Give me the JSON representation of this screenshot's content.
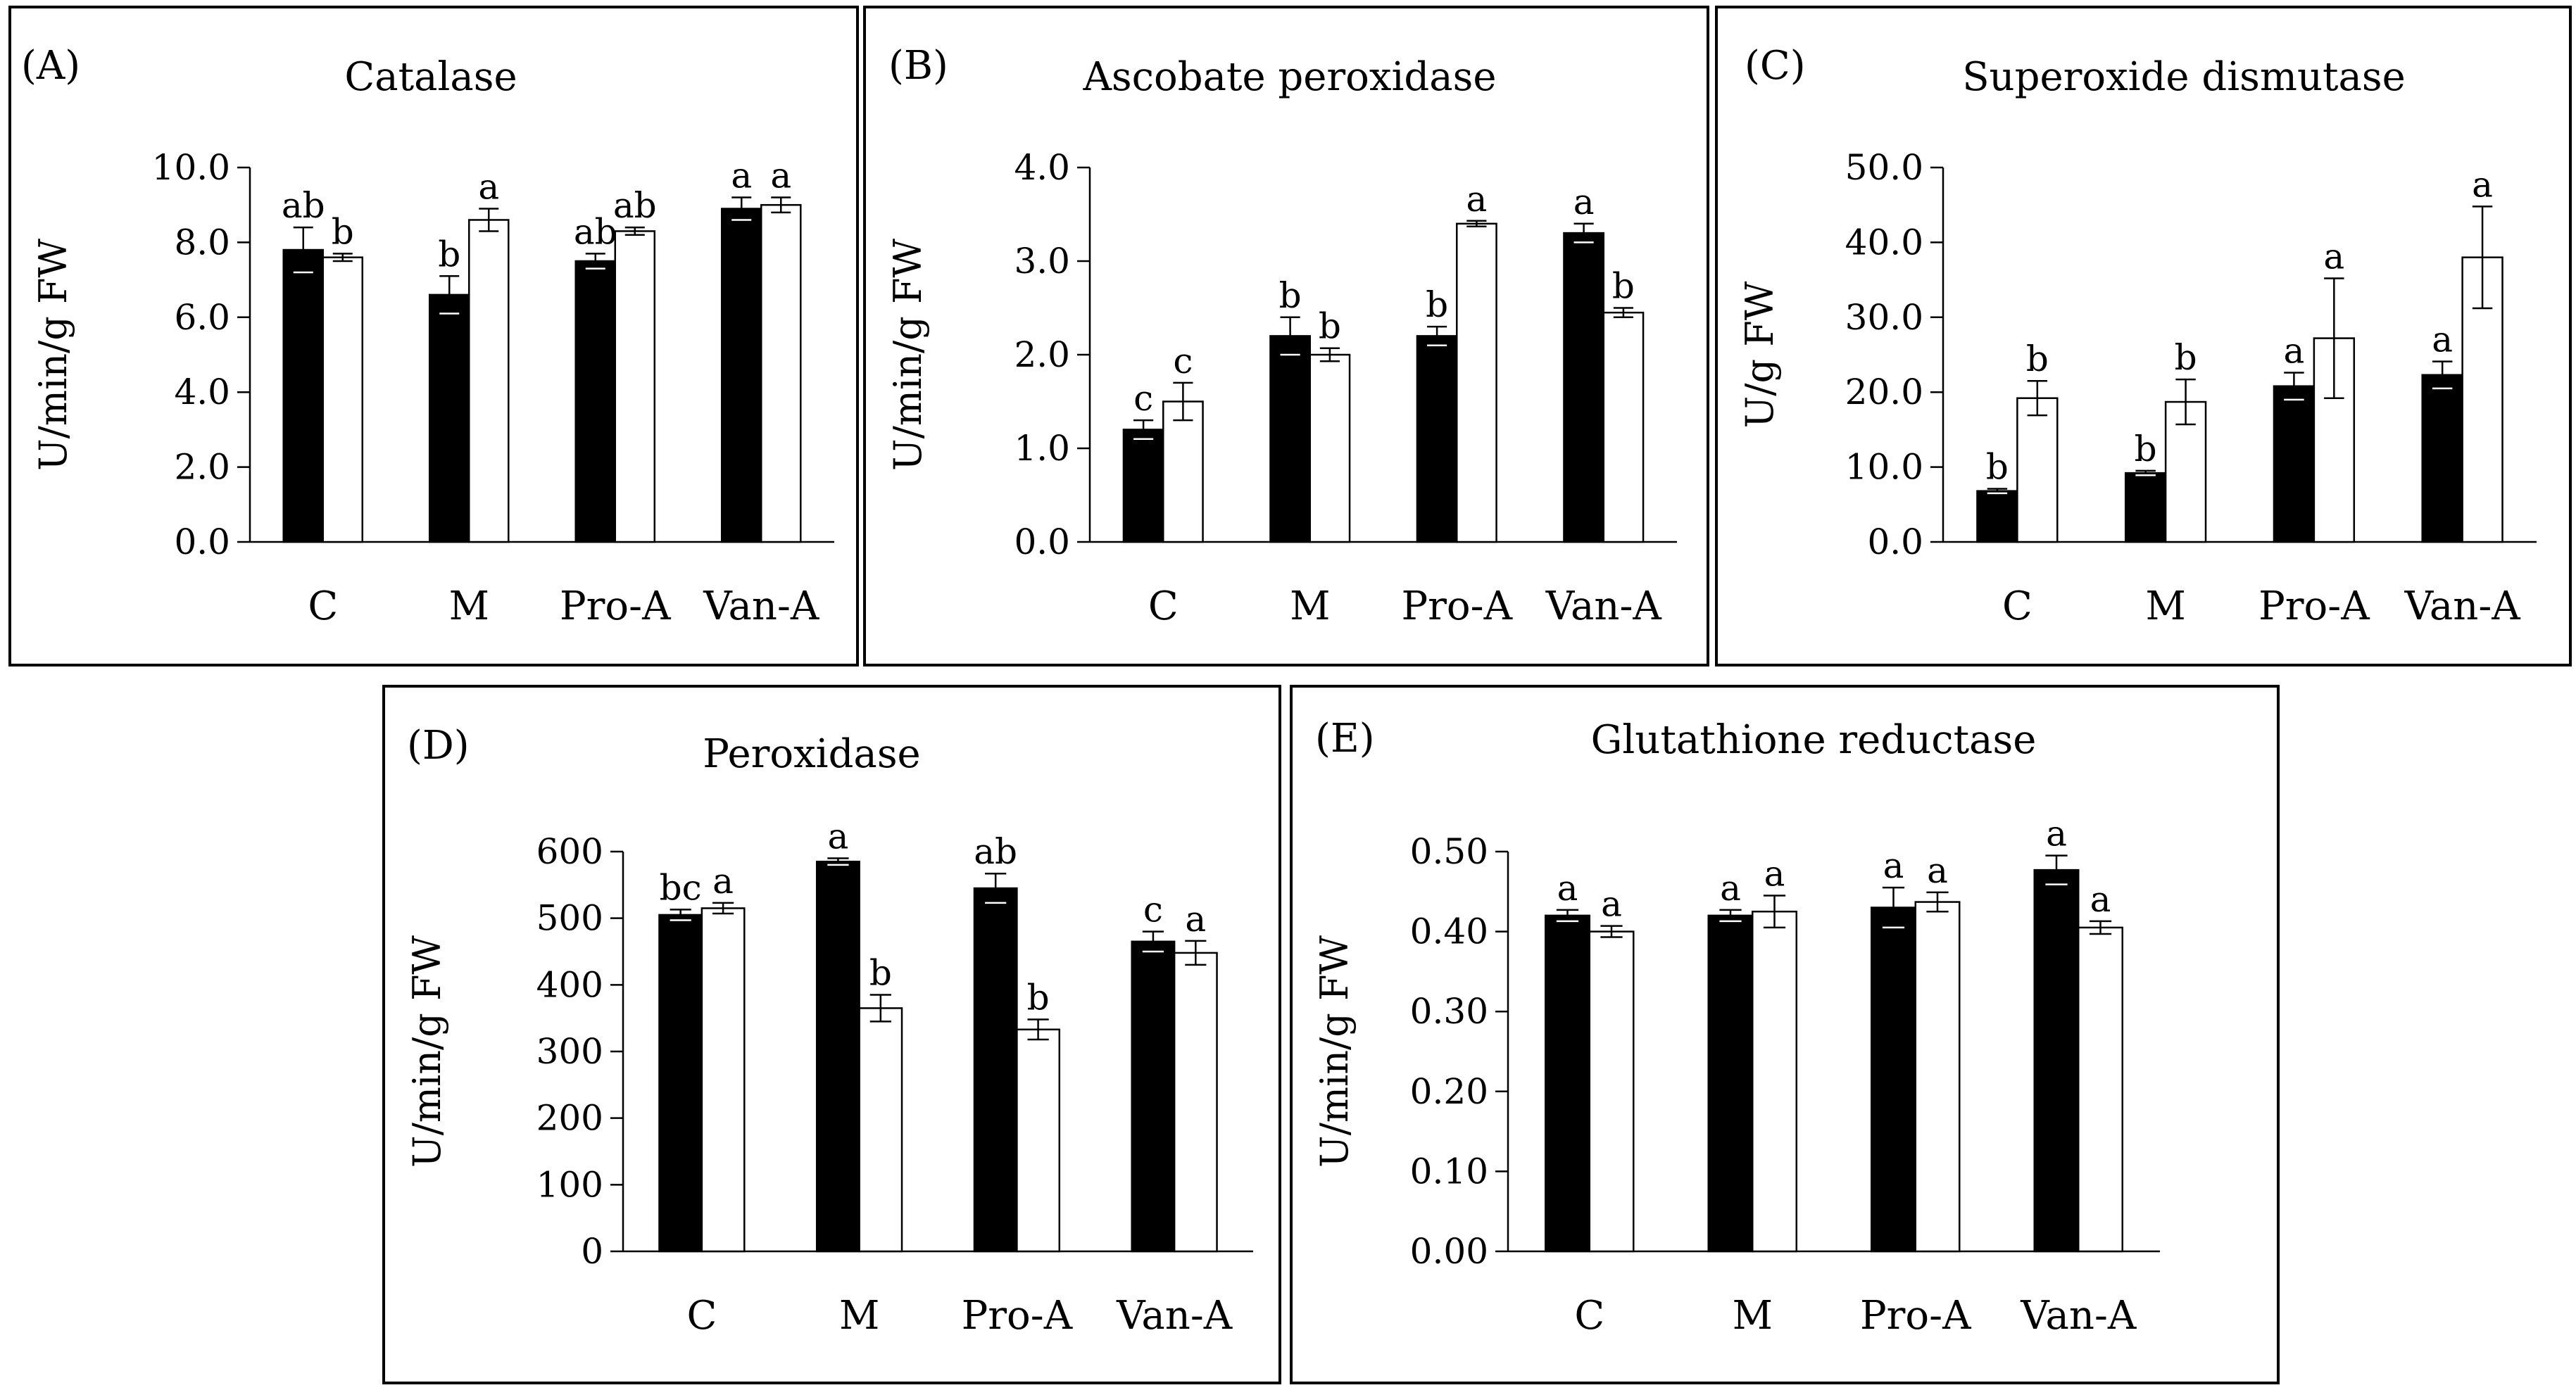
{
  "panel_labels": [
    "(A)",
    "(B)",
    "(C)",
    "(D)",
    "(E)"
  ],
  "colors": {
    "filled_bar": "#000000",
    "open_bar": "#ffffff",
    "outline": "#000000"
  },
  "chart_data": [
    {
      "type": "bar",
      "panel": "(A)",
      "title": "Catalase",
      "ylabel": "U/min/g  FW",
      "xlabel": "",
      "categories": [
        "C",
        "M",
        "Pro-A",
        "Van-A"
      ],
      "ylim": [
        0,
        10
      ],
      "yticks": [
        "0.0",
        "2.0",
        "4.0",
        "6.0",
        "8.0",
        "10.0"
      ],
      "series": [
        {
          "fill": "black",
          "values": [
            7.8,
            6.6,
            7.5,
            8.9
          ],
          "errors": [
            0.6,
            0.5,
            0.2,
            0.3
          ],
          "letters": [
            "ab",
            "b",
            "ab",
            "a"
          ]
        },
        {
          "fill": "white",
          "values": [
            7.6,
            8.6,
            8.3,
            9.0
          ],
          "errors": [
            0.1,
            0.3,
            0.1,
            0.2
          ],
          "letters": [
            "b",
            "a",
            "ab",
            "a"
          ]
        }
      ]
    },
    {
      "type": "bar",
      "panel": "(B)",
      "title": "Ascobate peroxidase",
      "ylabel": "U/min/g FW",
      "xlabel": "",
      "categories": [
        "C",
        "M",
        "Pro-A",
        "Van-A"
      ],
      "ylim": [
        0,
        4
      ],
      "yticks": [
        "0.0",
        "1.0",
        "2.0",
        "3.0",
        "4.0"
      ],
      "series": [
        {
          "fill": "black",
          "values": [
            1.2,
            2.2,
            2.2,
            3.3
          ],
          "errors": [
            0.1,
            0.2,
            0.1,
            0.1
          ],
          "letters": [
            "c",
            "b",
            "b",
            "a"
          ]
        },
        {
          "fill": "white",
          "values": [
            1.5,
            2.0,
            3.4,
            2.45
          ],
          "errors": [
            0.2,
            0.07,
            0.03,
            0.05
          ],
          "letters": [
            "c",
            "b",
            "a",
            "b"
          ]
        }
      ]
    },
    {
      "type": "bar",
      "panel": "(C)",
      "title": "Superoxide dismutase",
      "ylabel": "U/g FW",
      "xlabel": "",
      "categories": [
        "C",
        "M",
        "Pro-A",
        "Van-A"
      ],
      "ylim": [
        0,
        50
      ],
      "yticks": [
        "0.0",
        "10.0",
        "20.0",
        "30.0",
        "40.0",
        "50.0"
      ],
      "series": [
        {
          "fill": "black",
          "values": [
            6.8,
            9.2,
            20.8,
            22.3
          ],
          "errors": [
            0.3,
            0.3,
            1.8,
            1.8
          ],
          "letters": [
            "b",
            "b",
            "a",
            "a"
          ]
        },
        {
          "fill": "white",
          "values": [
            19.2,
            18.7,
            27.2,
            38.0
          ],
          "errors": [
            2.3,
            3.0,
            8.0,
            6.8
          ],
          "letters": [
            "b",
            "b",
            "a",
            "a"
          ]
        }
      ]
    },
    {
      "type": "bar",
      "panel": "(D)",
      "title": "Peroxidase",
      "ylabel": "U/min/g FW",
      "xlabel": "",
      "categories": [
        "C",
        "M",
        "Pro-A",
        "Van-A"
      ],
      "ylim": [
        0,
        600
      ],
      "yticks": [
        "0",
        "100",
        "200",
        "300",
        "400",
        "500",
        "600"
      ],
      "series": [
        {
          "fill": "black",
          "values": [
            505,
            585,
            545,
            465
          ],
          "errors": [
            8,
            5,
            22,
            15
          ],
          "letters": [
            "bc",
            "a",
            "ab",
            "c"
          ]
        },
        {
          "fill": "white",
          "values": [
            515,
            365,
            333,
            448
          ],
          "errors": [
            8,
            20,
            15,
            18
          ],
          "letters": [
            "a",
            "b",
            "b",
            "a"
          ]
        }
      ]
    },
    {
      "type": "bar",
      "panel": "(E)",
      "title": "Glutathione reductase",
      "ylabel": "U/min/g FW",
      "xlabel": "",
      "categories": [
        "C",
        "M",
        "Pro-A",
        "Van-A"
      ],
      "ylim": [
        0,
        0.5
      ],
      "yticks": [
        "0.00",
        "0.10",
        "0.20",
        "0.30",
        "0.40",
        "0.50"
      ],
      "series": [
        {
          "fill": "black",
          "values": [
            0.42,
            0.42,
            0.43,
            0.477
          ],
          "errors": [
            0.007,
            0.007,
            0.025,
            0.018
          ],
          "letters": [
            "a",
            "a",
            "a",
            "a"
          ]
        },
        {
          "fill": "white",
          "values": [
            0.4,
            0.425,
            0.437,
            0.405
          ],
          "errors": [
            0.007,
            0.02,
            0.012,
            0.008
          ],
          "letters": [
            "a",
            "a",
            "a",
            "a"
          ]
        }
      ]
    }
  ]
}
